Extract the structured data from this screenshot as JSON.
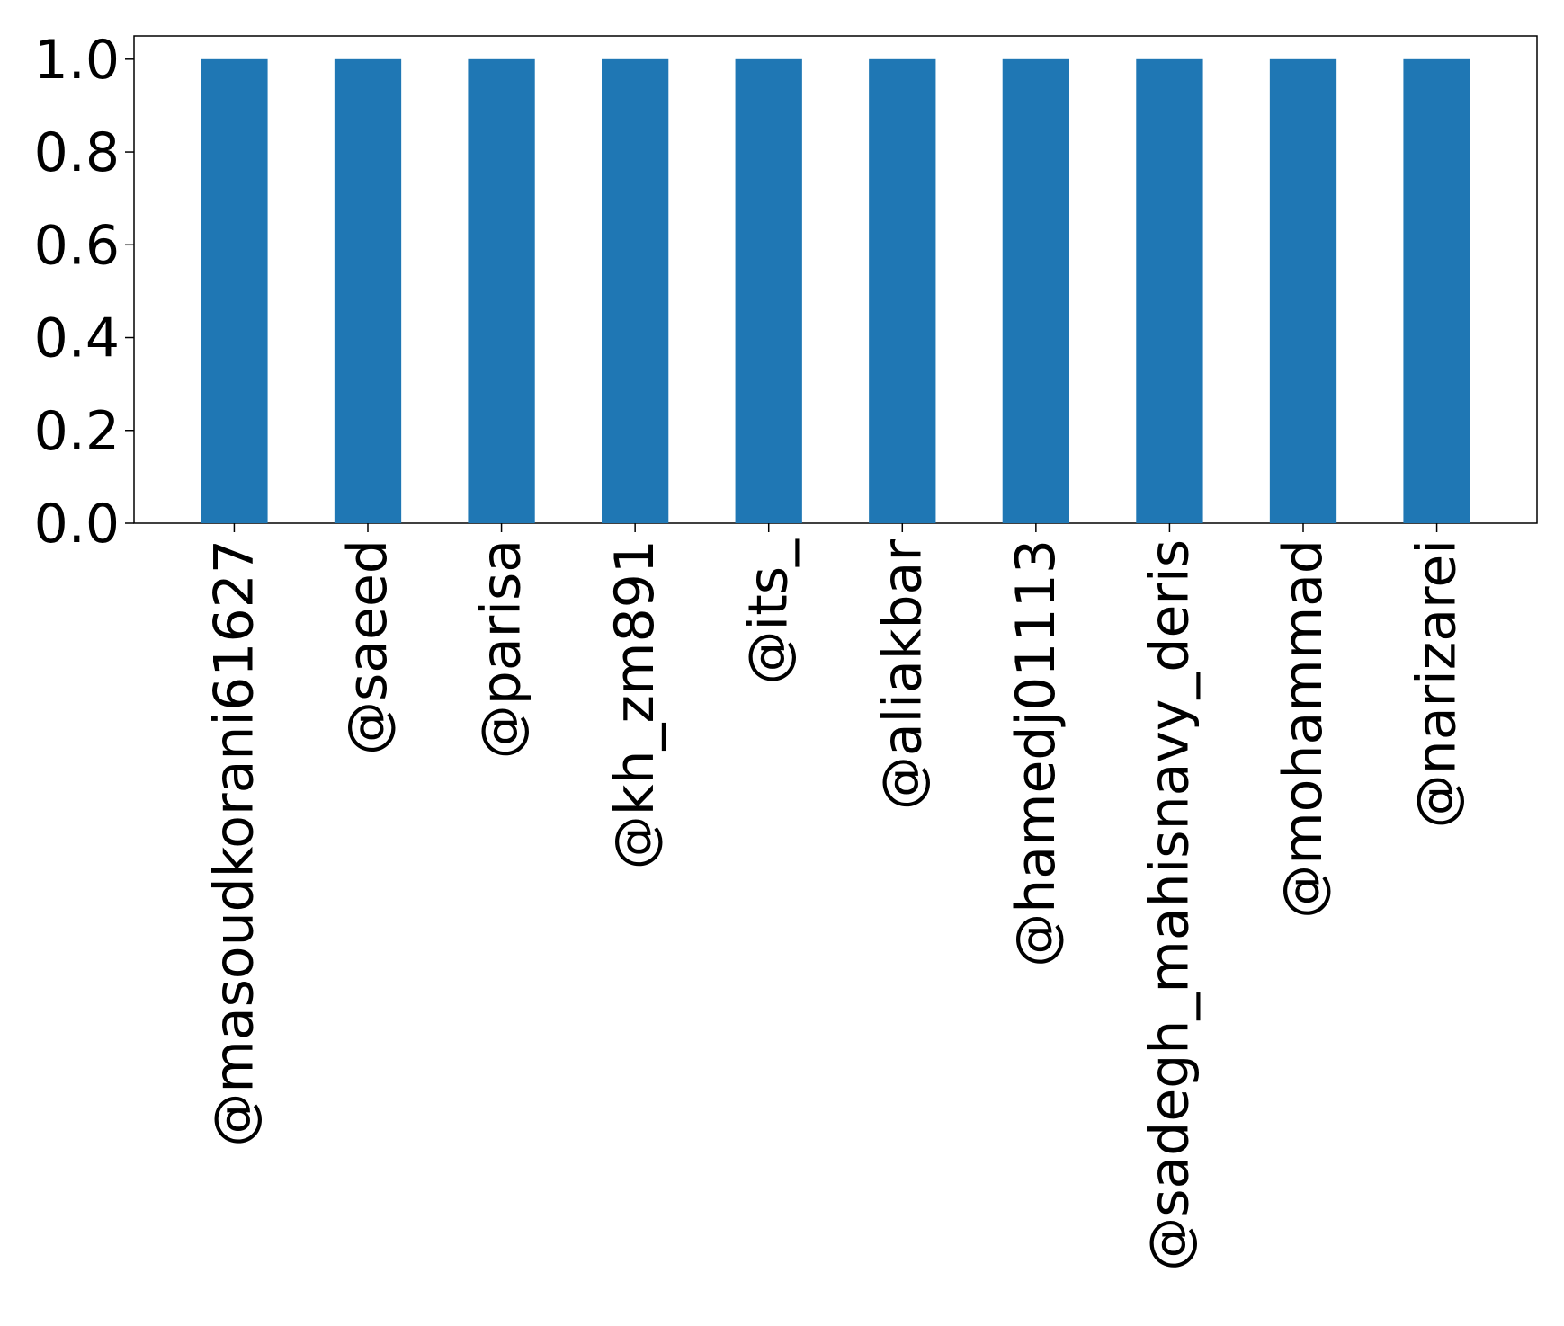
{
  "chart_data": {
    "type": "bar",
    "categories": [
      "@masoudkorani61627",
      "@saeed",
      "@parisa",
      "@kh_zm891",
      "@its_",
      "@aliakbar",
      "@hamedj01113",
      "@sadegh_mahisnavy_deris",
      "@mohammad",
      "@narizarei"
    ],
    "values": [
      1.0,
      1.0,
      1.0,
      1.0,
      1.0,
      1.0,
      1.0,
      1.0,
      1.0,
      1.0
    ],
    "title": "",
    "xlabel": "",
    "ylabel": "",
    "ylim": [
      0.0,
      1.05
    ],
    "yticks": [
      "0.0",
      "0.2",
      "0.4",
      "0.6",
      "0.8",
      "1.0"
    ],
    "grid": false,
    "legend": "none",
    "colors": {
      "bar": "#1f77b4",
      "axis": "#000000",
      "background": "#ffffff"
    }
  }
}
